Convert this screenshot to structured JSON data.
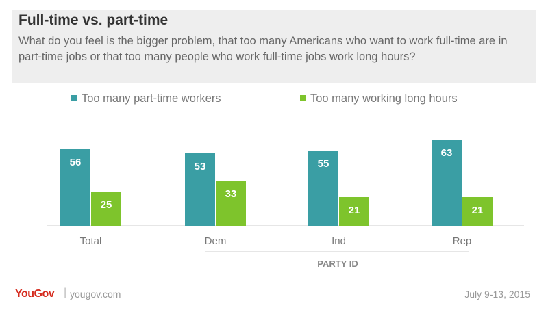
{
  "chart_data": {
    "type": "bar",
    "title": "Full-time vs. part-time",
    "subtitle": "What do you feel is the bigger problem, that too many Americans who want to work full-time are in part-time jobs or that too many people who work full-time jobs work long hours?",
    "categories": [
      "Total",
      "Dem",
      "Ind",
      "Rep"
    ],
    "group_label": "PARTY ID",
    "series": [
      {
        "name": "Too many part-time workers",
        "values": [
          56,
          53,
          55,
          63
        ],
        "color": "#3a9ea4"
      },
      {
        "name": "Too many working long hours",
        "values": [
          25,
          33,
          21,
          21
        ],
        "color": "#7ec42c"
      }
    ],
    "ylim": [
      0,
      70
    ],
    "grid": false,
    "legend_position": "top-left"
  },
  "footer": {
    "brand": "YouGov",
    "separator": "|",
    "url": "yougov.com",
    "date": "July 9-13, 2015"
  }
}
